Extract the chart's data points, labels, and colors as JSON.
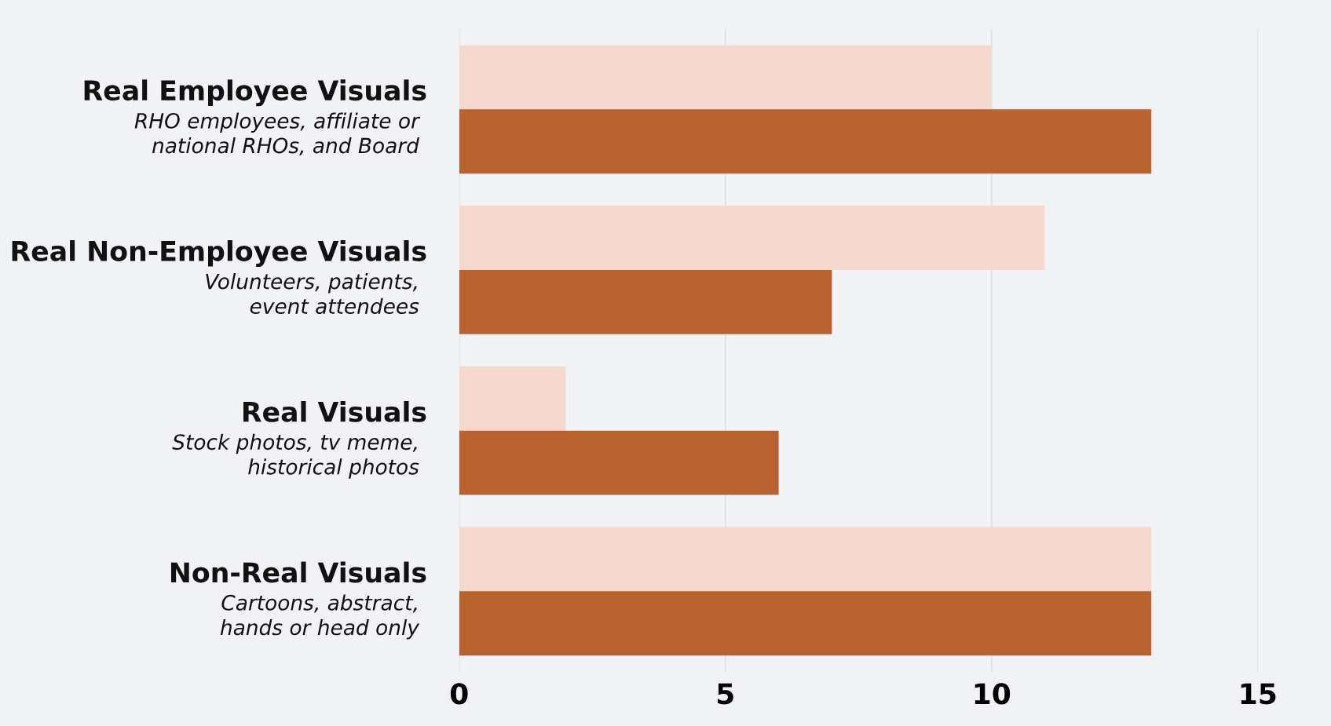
{
  "chart_data": {
    "type": "bar",
    "orientation": "horizontal",
    "categories": [
      "Real Employee Visuals\nRHO employees, affiliate or\nnational RHOs, and Board",
      "Real Non-Employee Visuals\nVolunteers, patients,\nevent attendees",
      "Real Visuals\nStock photos, tv meme,\nhistorical photos",
      "Non-Real Visuals\nCartoons, abstract,\nhands or head only"
    ],
    "series": [
      {
        "color": "#f5d9cf",
        "values": [
          10,
          11,
          2,
          13
        ]
      },
      {
        "color": "#b7622f",
        "values": [
          13,
          7,
          6,
          13
        ]
      }
    ],
    "xlim": [
      0,
      15
    ],
    "xticks": [
      0,
      5,
      10,
      15
    ],
    "grid": "x",
    "legend": false
  }
}
